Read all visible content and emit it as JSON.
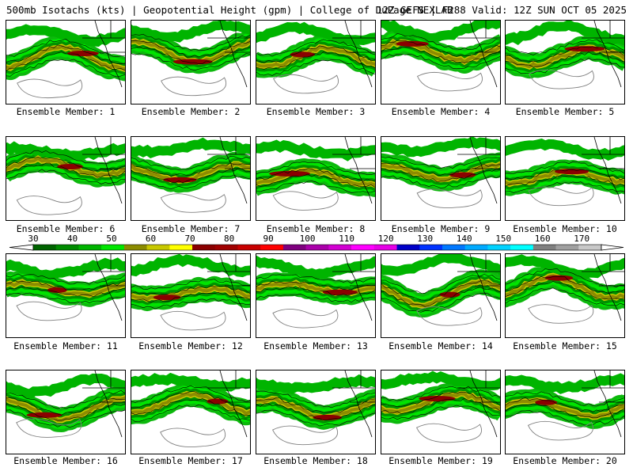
{
  "title": {
    "left": "500mb Isotachs (kts) | Geopotential Height (gpm) | College of DuPage NEXLAB",
    "right": "12Z GEFS | F288 Valid: 12Z SUN OCT 05 2025"
  },
  "colorbar": {
    "labels": [
      "30",
      "40",
      "50",
      "60",
      "70",
      "80",
      "90",
      "100",
      "110",
      "120",
      "130",
      "140",
      "150",
      "160",
      "170"
    ],
    "colors": [
      "#006400",
      "#008c00",
      "#00b400",
      "#00e600",
      "#8c8c00",
      "#c8c800",
      "#ffff00",
      "#8b0000",
      "#a00000",
      "#c80000",
      "#ff0000",
      "#7f007f",
      "#aa00aa",
      "#d200d2",
      "#ff00ff",
      "#e600e6",
      "#0000c8",
      "#0032ff",
      "#0078ff",
      "#00aaff",
      "#00d2ff",
      "#00ffff",
      "#808080",
      "#a0a0a0",
      "#c8c8c8"
    ]
  },
  "members": [
    {
      "label": "Ensemble Member: 1"
    },
    {
      "label": "Ensemble Member: 2"
    },
    {
      "label": "Ensemble Member: 3"
    },
    {
      "label": "Ensemble Member: 4"
    },
    {
      "label": "Ensemble Member: 5"
    },
    {
      "label": "Ensemble Member: 6"
    },
    {
      "label": "Ensemble Member: 7"
    },
    {
      "label": "Ensemble Member: 8"
    },
    {
      "label": "Ensemble Member: 9"
    },
    {
      "label": "Ensemble Member: 10"
    },
    {
      "label": "Ensemble Member: 11"
    },
    {
      "label": "Ensemble Member: 12"
    },
    {
      "label": "Ensemble Member: 13"
    },
    {
      "label": "Ensemble Member: 14"
    },
    {
      "label": "Ensemble Member: 15"
    },
    {
      "label": "Ensemble Member: 16"
    },
    {
      "label": "Ensemble Member: 17"
    },
    {
      "label": "Ensemble Member: 18"
    },
    {
      "label": "Ensemble Member: 19"
    },
    {
      "label": "Ensemble Member: 20"
    }
  ]
}
